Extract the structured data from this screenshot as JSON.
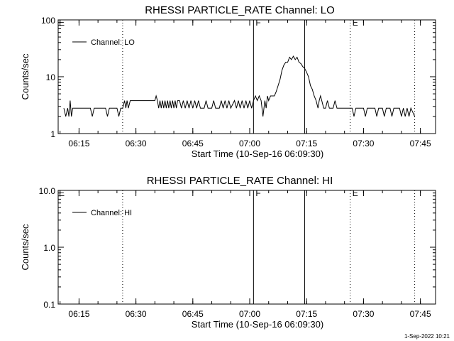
{
  "footer": {
    "timestamp": "1-Sep-2022 10:21"
  },
  "chart_data": [
    {
      "type": "line",
      "title": "RHESSI PARTICLE_RATE Channel: LO",
      "xlabel": "Start Time (10-Sep-16 06:09:30)",
      "ylabel": "Counts/sec",
      "yscale": "log",
      "ylim": [
        1,
        100
      ],
      "xlim": [
        "06:09:30",
        "07:49:00"
      ],
      "x_ticks": [
        "06:15",
        "06:30",
        "06:45",
        "07:00",
        "07:15",
        "07:30",
        "07:45"
      ],
      "y_ticks": [
        "1",
        "10",
        "100"
      ],
      "grid": false,
      "legend": {
        "placement": "top-left",
        "entries": [
          "Channel: LO"
        ]
      },
      "markers": [
        {
          "time": "06:26:30",
          "label": "",
          "style": "dotted"
        },
        {
          "time": "07:01:00",
          "label": "F",
          "style": "solid"
        },
        {
          "time": "07:14:30",
          "label": "",
          "style": "solid"
        },
        {
          "time": "07:26:30",
          "label": "E",
          "style": "dotted"
        },
        {
          "time": "07:43:30",
          "label": "",
          "style": "dotted"
        }
      ],
      "corner_label": "E",
      "series": [
        {
          "name": "Channel: LO",
          "points": [
            [
              "06:11:00",
              2.8
            ],
            [
              "06:11:30",
              2.0
            ],
            [
              "06:12:00",
              2.8
            ],
            [
              "06:12:20",
              2.0
            ],
            [
              "06:12:40",
              3.8
            ],
            [
              "06:13:00",
              2.0
            ],
            [
              "06:13:20",
              2.8
            ],
            [
              "06:15:00",
              2.8
            ],
            [
              "06:18:00",
              2.8
            ],
            [
              "06:18:30",
              2.0
            ],
            [
              "06:19:00",
              2.8
            ],
            [
              "06:22:00",
              2.8
            ],
            [
              "06:22:30",
              2.0
            ],
            [
              "06:23:00",
              2.8
            ],
            [
              "06:25:00",
              2.8
            ],
            [
              "06:25:30",
              2.0
            ],
            [
              "06:26:00",
              2.8
            ],
            [
              "06:26:30",
              2.8
            ],
            [
              "06:27:00",
              3.8
            ],
            [
              "06:27:20",
              2.8
            ],
            [
              "06:27:40",
              3.8
            ],
            [
              "06:28:00",
              2.8
            ],
            [
              "06:28:30",
              3.8
            ],
            [
              "06:35:00",
              3.8
            ],
            [
              "06:35:20",
              4.6
            ],
            [
              "06:35:40",
              3.8
            ],
            [
              "06:36:00",
              2.8
            ],
            [
              "06:36:20",
              3.8
            ],
            [
              "06:36:40",
              2.8
            ],
            [
              "06:37:00",
              3.8
            ],
            [
              "06:37:20",
              2.8
            ],
            [
              "06:37:40",
              3.8
            ],
            [
              "06:38:00",
              2.8
            ],
            [
              "06:38:20",
              3.8
            ],
            [
              "06:38:40",
              2.8
            ],
            [
              "06:39:00",
              3.8
            ],
            [
              "06:39:20",
              2.8
            ],
            [
              "06:39:40",
              3.8
            ],
            [
              "06:40:00",
              2.8
            ],
            [
              "06:40:20",
              3.8
            ],
            [
              "06:40:40",
              2.8
            ],
            [
              "06:41:00",
              3.8
            ],
            [
              "06:41:30",
              3.8
            ],
            [
              "06:42:00",
              2.8
            ],
            [
              "06:42:30",
              3.8
            ],
            [
              "06:43:00",
              2.8
            ],
            [
              "06:43:30",
              3.8
            ],
            [
              "06:44:00",
              2.8
            ],
            [
              "06:44:30",
              3.8
            ],
            [
              "06:45:00",
              2.8
            ],
            [
              "06:45:30",
              3.8
            ],
            [
              "06:46:00",
              2.8
            ],
            [
              "06:46:30",
              3.8
            ],
            [
              "06:47:00",
              2.8
            ],
            [
              "06:48:00",
              2.8
            ],
            [
              "06:48:30",
              3.8
            ],
            [
              "06:49:00",
              2.8
            ],
            [
              "06:50:00",
              2.8
            ],
            [
              "06:50:30",
              3.8
            ],
            [
              "06:51:00",
              2.8
            ],
            [
              "06:52:00",
              2.8
            ],
            [
              "06:52:30",
              3.8
            ],
            [
              "06:53:00",
              2.8
            ],
            [
              "06:53:30",
              3.8
            ],
            [
              "06:54:00",
              2.8
            ],
            [
              "06:54:30",
              3.8
            ],
            [
              "06:55:00",
              2.8
            ],
            [
              "06:56:00",
              3.8
            ],
            [
              "06:56:30",
              2.8
            ],
            [
              "06:57:00",
              3.8
            ],
            [
              "06:57:30",
              2.8
            ],
            [
              "06:58:00",
              3.8
            ],
            [
              "06:58:30",
              2.8
            ],
            [
              "06:59:00",
              3.8
            ],
            [
              "06:59:30",
              2.8
            ],
            [
              "07:00:00",
              3.8
            ],
            [
              "07:00:30",
              2.8
            ],
            [
              "07:01:00",
              3.8
            ],
            [
              "07:01:30",
              4.6
            ],
            [
              "07:02:00",
              3.8
            ],
            [
              "07:02:30",
              4.6
            ],
            [
              "07:03:00",
              3.8
            ],
            [
              "07:03:30",
              2.0
            ],
            [
              "07:04:00",
              3.8
            ],
            [
              "07:04:20",
              2.8
            ],
            [
              "07:04:40",
              4.6
            ],
            [
              "07:05:00",
              3.8
            ],
            [
              "07:05:30",
              4.6
            ],
            [
              "07:06:30",
              4.6
            ],
            [
              "07:07:00",
              5.5
            ],
            [
              "07:07:30",
              7.0
            ],
            [
              "07:08:00",
              9.0
            ],
            [
              "07:08:30",
              13.0
            ],
            [
              "07:09:00",
              16.0
            ],
            [
              "07:09:30",
              18.0
            ],
            [
              "07:10:00",
              18.0
            ],
            [
              "07:10:30",
              22.0
            ],
            [
              "07:11:00",
              20.0
            ],
            [
              "07:11:30",
              23.0
            ],
            [
              "07:12:00",
              20.0
            ],
            [
              "07:12:30",
              22.0
            ],
            [
              "07:13:00",
              18.0
            ],
            [
              "07:13:30",
              17.0
            ],
            [
              "07:14:00",
              15.0
            ],
            [
              "07:14:30",
              14.0
            ],
            [
              "07:15:00",
              12.0
            ],
            [
              "07:15:30",
              10.0
            ],
            [
              "07:16:00",
              7.0
            ],
            [
              "07:16:30",
              6.0
            ],
            [
              "07:17:00",
              4.6
            ],
            [
              "07:17:30",
              3.8
            ],
            [
              "07:18:00",
              2.8
            ],
            [
              "07:18:20",
              3.8
            ],
            [
              "07:18:40",
              4.6
            ],
            [
              "07:19:00",
              3.8
            ],
            [
              "07:19:30",
              2.8
            ],
            [
              "07:20:00",
              2.8
            ],
            [
              "07:20:30",
              3.8
            ],
            [
              "07:21:00",
              2.8
            ],
            [
              "07:22:00",
              2.8
            ],
            [
              "07:22:30",
              3.8
            ],
            [
              "07:23:00",
              2.8
            ],
            [
              "07:27:00",
              2.8
            ],
            [
              "07:27:30",
              2.0
            ],
            [
              "07:28:00",
              2.8
            ],
            [
              "07:30:00",
              2.8
            ],
            [
              "07:30:30",
              2.0
            ],
            [
              "07:31:00",
              2.8
            ],
            [
              "07:33:00",
              2.8
            ],
            [
              "07:33:30",
              2.0
            ],
            [
              "07:34:00",
              2.8
            ],
            [
              "07:35:00",
              2.8
            ],
            [
              "07:35:30",
              2.0
            ],
            [
              "07:36:00",
              2.8
            ],
            [
              "07:37:00",
              2.8
            ],
            [
              "07:37:30",
              2.0
            ],
            [
              "07:38:00",
              2.8
            ],
            [
              "07:39:30",
              2.8
            ],
            [
              "07:40:00",
              2.0
            ],
            [
              "07:40:30",
              2.8
            ],
            [
              "07:41:00",
              2.0
            ],
            [
              "07:41:30",
              2.8
            ],
            [
              "07:42:00",
              2.0
            ],
            [
              "07:42:30",
              2.8
            ],
            [
              "07:43:30",
              2.0
            ]
          ]
        }
      ]
    },
    {
      "type": "line",
      "title": "RHESSI PARTICLE_RATE Channel: HI",
      "xlabel": "Start Time (10-Sep-16 06:09:30)",
      "ylabel": "Counts/sec",
      "yscale": "log",
      "ylim": [
        0.1,
        10
      ],
      "xlim": [
        "06:09:30",
        "07:49:00"
      ],
      "x_ticks": [
        "06:15",
        "06:30",
        "06:45",
        "07:00",
        "07:15",
        "07:30",
        "07:45"
      ],
      "y_ticks": [
        "0.1",
        "1.0",
        "10.0"
      ],
      "grid": false,
      "legend": {
        "placement": "top-left",
        "entries": [
          "Channel: HI"
        ]
      },
      "markers": [
        {
          "time": "06:26:30",
          "label": "",
          "style": "dotted"
        },
        {
          "time": "07:01:00",
          "label": "F",
          "style": "solid"
        },
        {
          "time": "07:14:30",
          "label": "",
          "style": "solid"
        },
        {
          "time": "07:26:30",
          "label": "E",
          "style": "dotted"
        },
        {
          "time": "07:43:30",
          "label": "",
          "style": "dotted"
        }
      ],
      "corner_label": "E",
      "series": [
        {
          "name": "Channel: HI",
          "points": []
        }
      ]
    }
  ]
}
